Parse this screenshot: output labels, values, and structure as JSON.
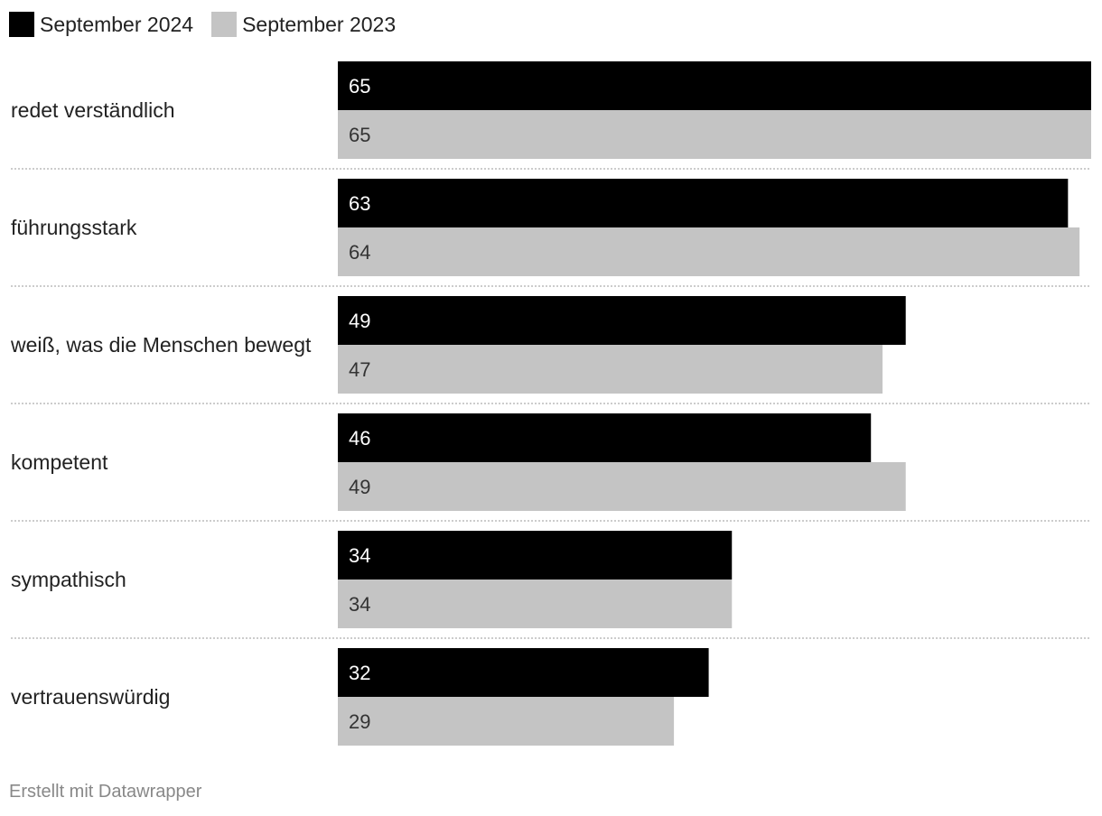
{
  "chart_data": {
    "type": "bar",
    "orientation": "horizontal",
    "categories": [
      "redet verständlich",
      "führungsstark",
      "weiß, was die Menschen bewegt",
      "kompetent",
      "sympathisch",
      "vertrauenswürdig"
    ],
    "series": [
      {
        "name": "September 2024",
        "color": "#000000",
        "label_color": "#ffffff",
        "values": [
          65,
          63,
          49,
          46,
          34,
          32
        ]
      },
      {
        "name": "September 2023",
        "color": "#c4c4c4",
        "label_color": "#333333",
        "values": [
          65,
          64,
          47,
          49,
          34,
          29
        ]
      }
    ],
    "xlim": [
      0,
      65
    ],
    "legend_position": "top-left",
    "separators": "dotted"
  },
  "footer": {
    "credit": "Erstellt mit Datawrapper"
  }
}
